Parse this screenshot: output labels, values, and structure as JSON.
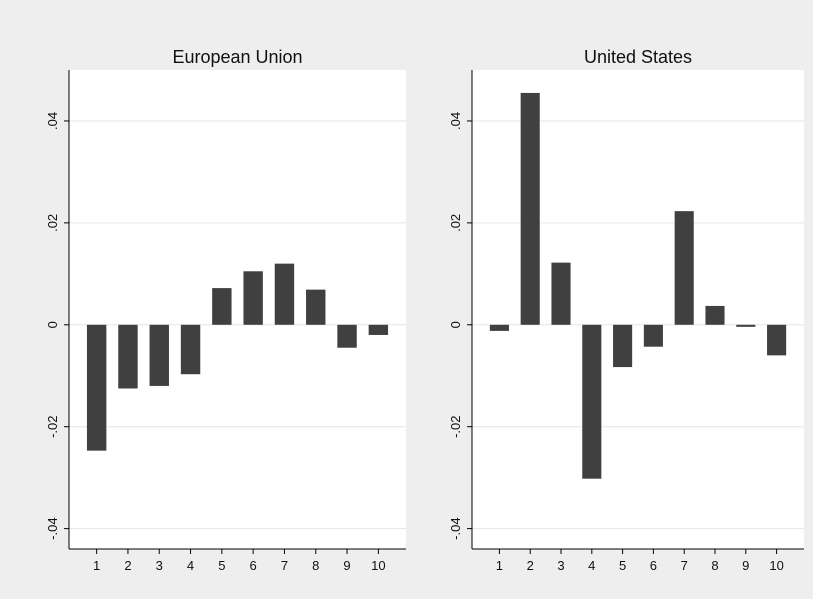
{
  "chart_data": [
    {
      "type": "bar",
      "title": "European Union",
      "xlabel": "",
      "ylabel": "",
      "categories": [
        "1",
        "2",
        "3",
        "4",
        "5",
        "6",
        "7",
        "8",
        "9",
        "10"
      ],
      "values": [
        -0.0247,
        -0.0125,
        -0.012,
        -0.0097,
        0.0072,
        0.0105,
        0.012,
        0.0069,
        -0.0045,
        -0.002
      ],
      "ylim": [
        -0.044,
        0.05
      ],
      "yticks": [
        -0.04,
        -0.02,
        0,
        0.02,
        0.04
      ],
      "ytick_labels": [
        "-.04",
        "-.02",
        "0",
        ".02",
        ".04"
      ],
      "grid": true,
      "bar_color": "#404040"
    },
    {
      "type": "bar",
      "title": "United States",
      "xlabel": "",
      "ylabel": "",
      "categories": [
        "1",
        "2",
        "3",
        "4",
        "5",
        "6",
        "7",
        "8",
        "9",
        "10"
      ],
      "values": [
        -0.0012,
        0.0455,
        0.0122,
        -0.0302,
        -0.0083,
        -0.0043,
        0.0223,
        0.0037,
        -0.0004,
        -0.006
      ],
      "ylim": [
        -0.044,
        0.05
      ],
      "yticks": [
        -0.04,
        -0.02,
        0,
        0.02,
        0.04
      ],
      "ytick_labels": [
        "-.04",
        "-.02",
        "0",
        ".02",
        ".04"
      ],
      "grid": true,
      "bar_color": "#404040"
    }
  ]
}
